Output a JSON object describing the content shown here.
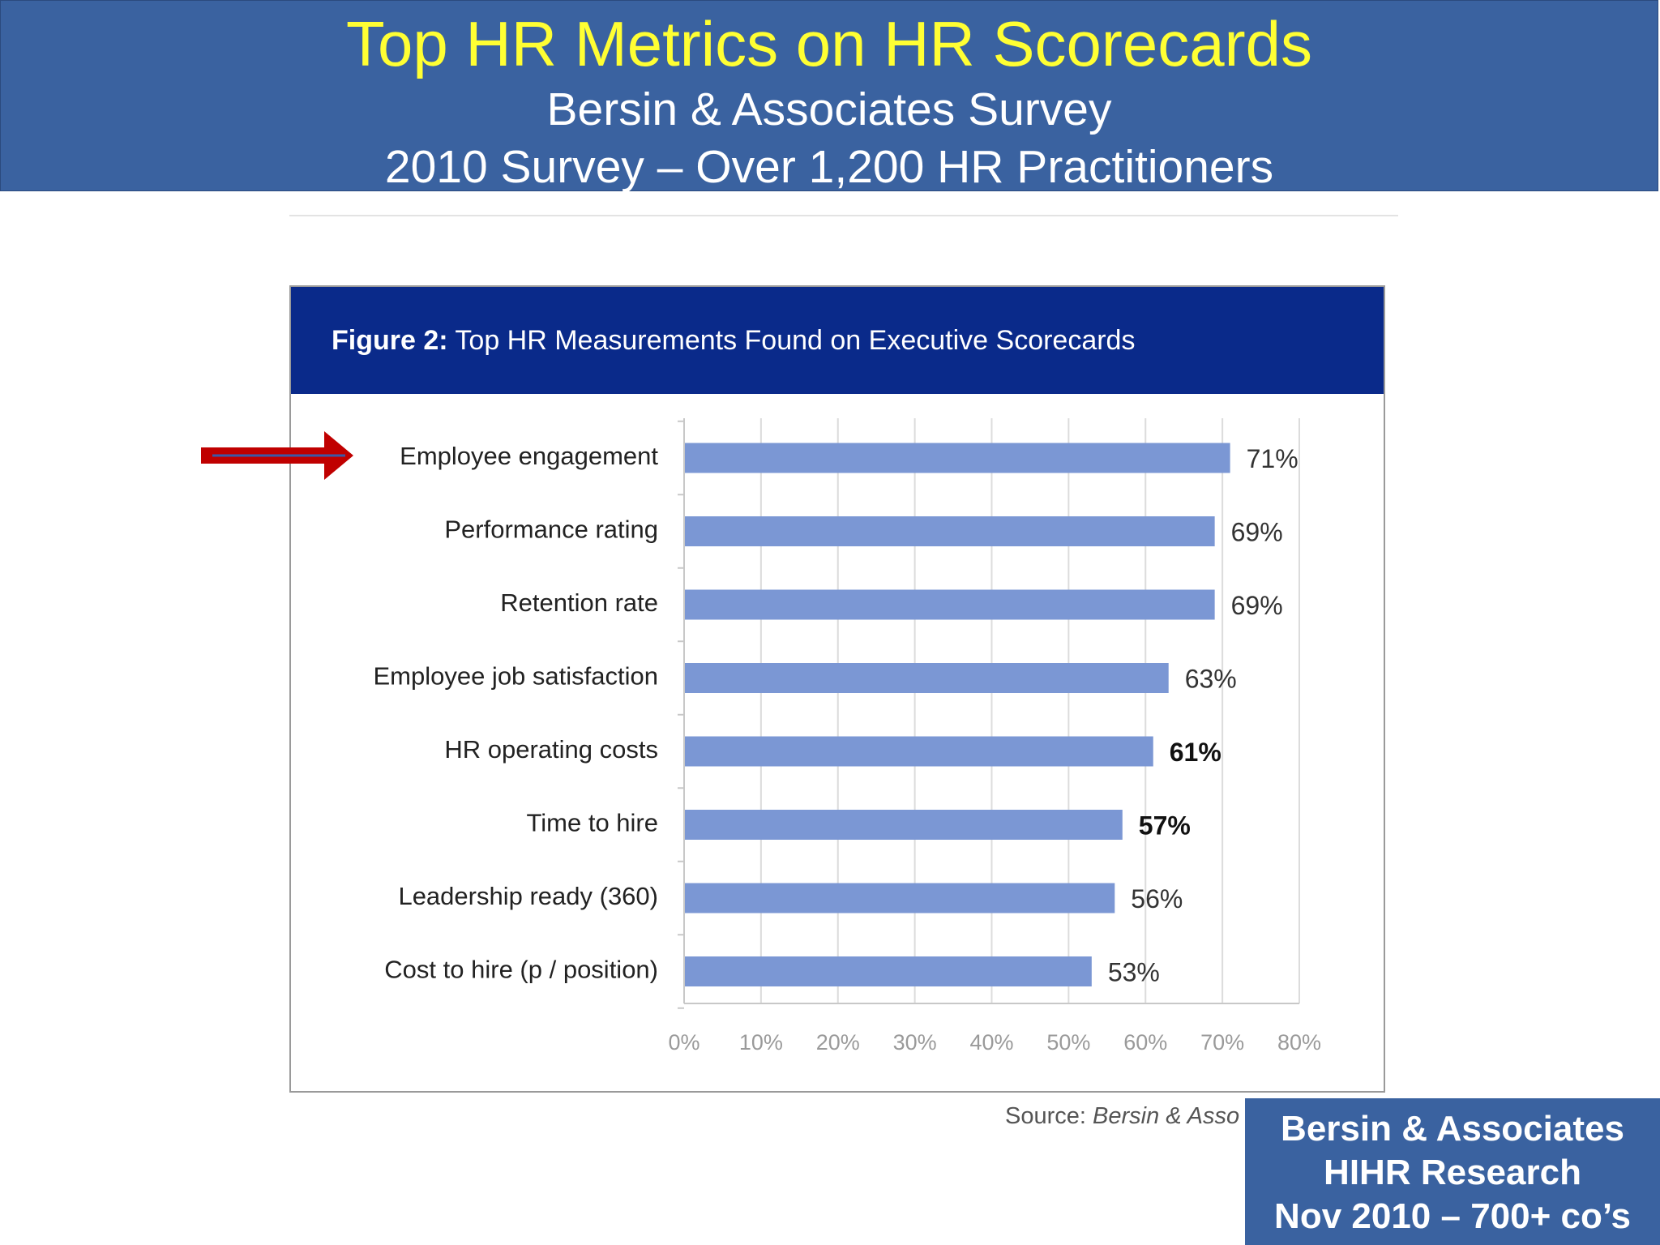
{
  "header": {
    "title": "Top HR Metrics on HR Scorecards",
    "subtitle1": "Bersin & Associates Survey",
    "subtitle2": "2010 Survey – Over 1,200 HR Practitioners"
  },
  "figure": {
    "caption_bold": "Figure 2:",
    "caption_text": " Top HR Measurements Found on Executive Scorecards"
  },
  "chart_data": {
    "type": "bar",
    "orientation": "horizontal",
    "categories": [
      "Employee engagement",
      "Performance rating",
      "Retention rate",
      "Employee job satisfaction",
      "HR operating costs",
      "Time to hire",
      "Leadership ready (360)",
      "Cost to hire (p / position)"
    ],
    "values": [
      71,
      69,
      69,
      63,
      61,
      57,
      56,
      53
    ],
    "value_labels": [
      "71%",
      "69%",
      "69%",
      "63%",
      "61%",
      "57%",
      "56%",
      "53%"
    ],
    "bold_value_labels": [
      false,
      false,
      false,
      false,
      true,
      true,
      false,
      false
    ],
    "xlim": [
      0,
      80
    ],
    "xticks": [
      "0%",
      "10%",
      "20%",
      "30%",
      "40%",
      "50%",
      "60%",
      "70%",
      "80%"
    ],
    "grid": "vertical",
    "bar_color": "#7b97d4",
    "highlighted_category": "Employee engagement"
  },
  "source": {
    "label": "Source:",
    "text": "Bersin & Asso"
  },
  "stamp": {
    "line1": "Bersin & Associates",
    "line2": "HIHR Research",
    "line3": "Nov 2010 – 700+ co’s"
  },
  "colors": {
    "header_bg": "#3a62a0",
    "title": "#ffff33",
    "figure_header_bg": "#0a2a8a",
    "arrow": "#c00000"
  }
}
